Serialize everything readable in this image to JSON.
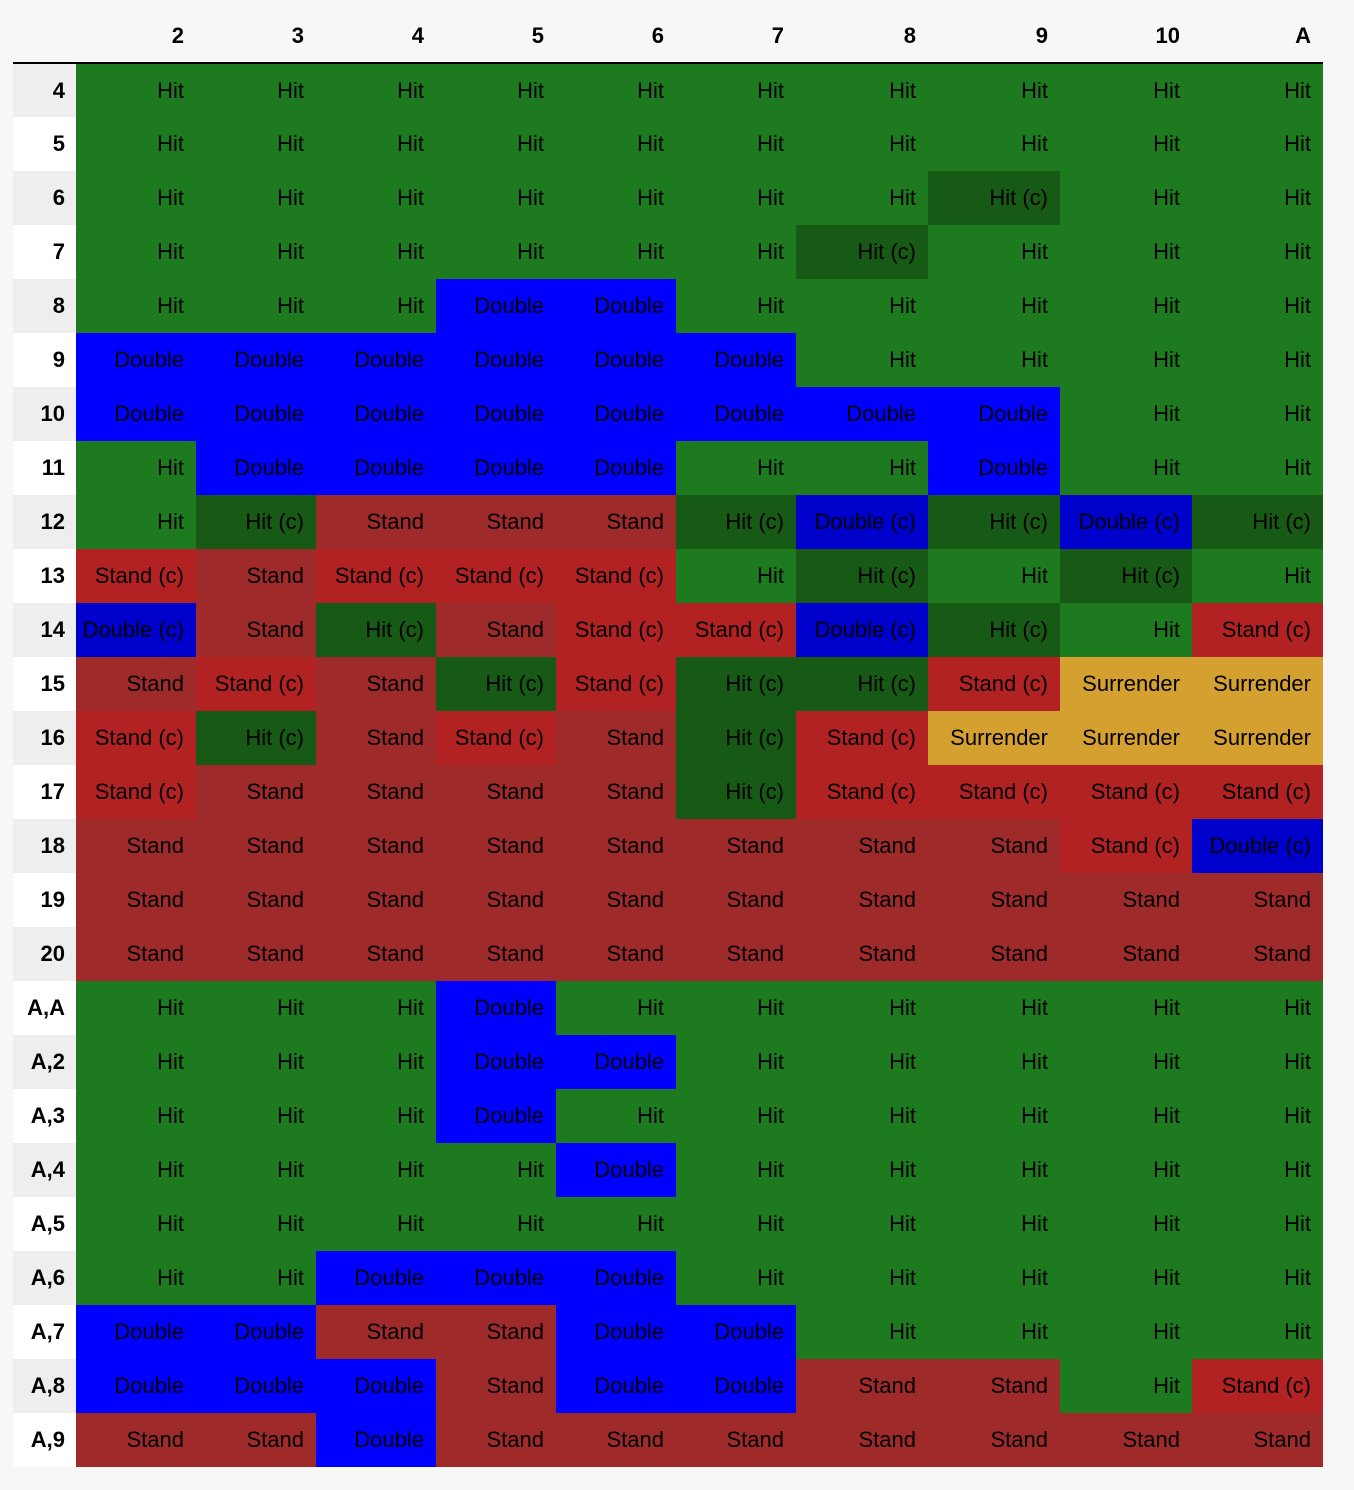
{
  "colors": {
    "Hit": "#1e7a1e",
    "Hit (c)": "#165a16",
    "Double": "#0000ff",
    "Double (c)": "#0000cc",
    "Stand": "#9e2a2a",
    "Stand (c)": "#b22222",
    "Surrender": "#d4a030"
  },
  "header": {
    "corner": "",
    "columns": [
      "2",
      "3",
      "4",
      "5",
      "6",
      "7",
      "8",
      "9",
      "10",
      "A"
    ]
  },
  "rows": [
    {
      "label": "4",
      "cells": [
        "Hit",
        "Hit",
        "Hit",
        "Hit",
        "Hit",
        "Hit",
        "Hit",
        "Hit",
        "Hit",
        "Hit"
      ]
    },
    {
      "label": "5",
      "cells": [
        "Hit",
        "Hit",
        "Hit",
        "Hit",
        "Hit",
        "Hit",
        "Hit",
        "Hit",
        "Hit",
        "Hit"
      ]
    },
    {
      "label": "6",
      "cells": [
        "Hit",
        "Hit",
        "Hit",
        "Hit",
        "Hit",
        "Hit",
        "Hit",
        "Hit (c)",
        "Hit",
        "Hit"
      ]
    },
    {
      "label": "7",
      "cells": [
        "Hit",
        "Hit",
        "Hit",
        "Hit",
        "Hit",
        "Hit",
        "Hit (c)",
        "Hit",
        "Hit",
        "Hit"
      ]
    },
    {
      "label": "8",
      "cells": [
        "Hit",
        "Hit",
        "Hit",
        "Double",
        "Double",
        "Hit",
        "Hit",
        "Hit",
        "Hit",
        "Hit"
      ]
    },
    {
      "label": "9",
      "cells": [
        "Double",
        "Double",
        "Double",
        "Double",
        "Double",
        "Double",
        "Hit",
        "Hit",
        "Hit",
        "Hit"
      ]
    },
    {
      "label": "10",
      "cells": [
        "Double",
        "Double",
        "Double",
        "Double",
        "Double",
        "Double",
        "Double",
        "Double",
        "Hit",
        "Hit"
      ]
    },
    {
      "label": "11",
      "cells": [
        "Hit",
        "Double",
        "Double",
        "Double",
        "Double",
        "Hit",
        "Hit",
        "Double",
        "Hit",
        "Hit"
      ]
    },
    {
      "label": "12",
      "cells": [
        "Hit",
        "Hit (c)",
        "Stand",
        "Stand",
        "Stand",
        "Hit (c)",
        "Double (c)",
        "Hit (c)",
        "Double (c)",
        "Hit (c)"
      ]
    },
    {
      "label": "13",
      "cells": [
        "Stand (c)",
        "Stand",
        "Stand (c)",
        "Stand (c)",
        "Stand (c)",
        "Hit",
        "Hit (c)",
        "Hit",
        "Hit (c)",
        "Hit"
      ]
    },
    {
      "label": "14",
      "cells": [
        "Double (c)",
        "Stand",
        "Hit (c)",
        "Stand",
        "Stand (c)",
        "Stand (c)",
        "Double (c)",
        "Hit (c)",
        "Hit",
        "Stand (c)"
      ]
    },
    {
      "label": "15",
      "cells": [
        "Stand",
        "Stand (c)",
        "Stand",
        "Hit (c)",
        "Stand (c)",
        "Hit (c)",
        "Hit (c)",
        "Stand (c)",
        "Surrender",
        "Surrender"
      ]
    },
    {
      "label": "16",
      "cells": [
        "Stand (c)",
        "Hit (c)",
        "Stand",
        "Stand (c)",
        "Stand",
        "Hit (c)",
        "Stand (c)",
        "Surrender",
        "Surrender",
        "Surrender"
      ]
    },
    {
      "label": "17",
      "cells": [
        "Stand (c)",
        "Stand",
        "Stand",
        "Stand",
        "Stand",
        "Hit (c)",
        "Stand (c)",
        "Stand (c)",
        "Stand (c)",
        "Stand (c)"
      ]
    },
    {
      "label": "18",
      "cells": [
        "Stand",
        "Stand",
        "Stand",
        "Stand",
        "Stand",
        "Stand",
        "Stand",
        "Stand",
        "Stand (c)",
        "Double (c)"
      ]
    },
    {
      "label": "19",
      "cells": [
        "Stand",
        "Stand",
        "Stand",
        "Stand",
        "Stand",
        "Stand",
        "Stand",
        "Stand",
        "Stand",
        "Stand"
      ]
    },
    {
      "label": "20",
      "cells": [
        "Stand",
        "Stand",
        "Stand",
        "Stand",
        "Stand",
        "Stand",
        "Stand",
        "Stand",
        "Stand",
        "Stand"
      ]
    },
    {
      "label": "A,A",
      "cells": [
        "Hit",
        "Hit",
        "Hit",
        "Double",
        "Hit",
        "Hit",
        "Hit",
        "Hit",
        "Hit",
        "Hit"
      ]
    },
    {
      "label": "A,2",
      "cells": [
        "Hit",
        "Hit",
        "Hit",
        "Double",
        "Double",
        "Hit",
        "Hit",
        "Hit",
        "Hit",
        "Hit"
      ]
    },
    {
      "label": "A,3",
      "cells": [
        "Hit",
        "Hit",
        "Hit",
        "Double",
        "Hit",
        "Hit",
        "Hit",
        "Hit",
        "Hit",
        "Hit"
      ]
    },
    {
      "label": "A,4",
      "cells": [
        "Hit",
        "Hit",
        "Hit",
        "Hit",
        "Double",
        "Hit",
        "Hit",
        "Hit",
        "Hit",
        "Hit"
      ]
    },
    {
      "label": "A,5",
      "cells": [
        "Hit",
        "Hit",
        "Hit",
        "Hit",
        "Hit",
        "Hit",
        "Hit",
        "Hit",
        "Hit",
        "Hit"
      ]
    },
    {
      "label": "A,6",
      "cells": [
        "Hit",
        "Hit",
        "Double",
        "Double",
        "Double",
        "Hit",
        "Hit",
        "Hit",
        "Hit",
        "Hit"
      ]
    },
    {
      "label": "A,7",
      "cells": [
        "Double",
        "Double",
        "Stand",
        "Stand",
        "Double",
        "Double",
        "Hit",
        "Hit",
        "Hit",
        "Hit"
      ]
    },
    {
      "label": "A,8",
      "cells": [
        "Double",
        "Double",
        "Double",
        "Stand",
        "Double",
        "Double",
        "Stand",
        "Stand",
        "Hit",
        "Stand (c)"
      ]
    },
    {
      "label": "A,9",
      "cells": [
        "Stand",
        "Stand",
        "Double",
        "Stand",
        "Stand",
        "Stand",
        "Stand",
        "Stand",
        "Stand",
        "Stand"
      ]
    }
  ]
}
